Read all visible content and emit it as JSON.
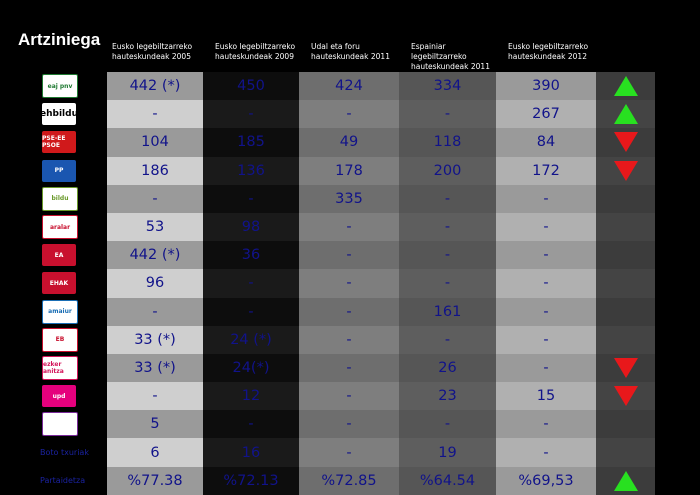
{
  "title": "Artziniega",
  "columns": [
    "Eusko legebiltzarreko hauteskundeak 2005",
    "Eusko legebiltzarreko hauteskundeak 2009",
    "Udal eta foru hauteskundeak 2011",
    "Espainiar legebiltzarreko hauteskundeak 2011",
    "Eusko legebiltzarreko hauteskundeak 2012"
  ],
  "rows": [
    {
      "logo": "eaj-pnv-logo",
      "logo_text": "eaj pnv",
      "color": "#1f7a32",
      "values": [
        "442 (*)",
        "450",
        "424",
        "334",
        "390"
      ],
      "trend": "up"
    },
    {
      "logo": "ehbildu-logo",
      "logo_text": "ehbildu",
      "color": "#000000",
      "values": [
        "-",
        "-",
        "-",
        "-",
        "267"
      ],
      "trend": "up"
    },
    {
      "logo": "pse-ee-logo",
      "logo_text": "PSE-EE PSOE",
      "color": "#d0191b",
      "values": [
        "104",
        "185",
        "49",
        "118",
        "84"
      ],
      "trend": "down"
    },
    {
      "logo": "pp-logo",
      "logo_text": "PP",
      "color": "#1a56b0",
      "values": [
        "186",
        "136",
        "178",
        "200",
        "172"
      ],
      "trend": "down"
    },
    {
      "logo": "bildu-logo",
      "logo_text": "bildu",
      "color": "#6a9a2a",
      "values": [
        "-",
        "-",
        "335",
        "-",
        "-"
      ],
      "trend": ""
    },
    {
      "logo": "aralar-logo",
      "logo_text": "aralar",
      "color": "#c8102e",
      "values": [
        "53",
        "98",
        "-",
        "-",
        "-"
      ],
      "trend": ""
    },
    {
      "logo": "ea-logo",
      "logo_text": "EA",
      "color": "#c8102e",
      "values": [
        "442 (*)",
        "36",
        "-",
        "-",
        "-"
      ],
      "trend": ""
    },
    {
      "logo": "ehak-logo",
      "logo_text": "EHAK",
      "color": "#c8102e",
      "values": [
        "96",
        "-",
        "-",
        "-",
        "-"
      ],
      "trend": ""
    },
    {
      "logo": "amaiur-logo",
      "logo_text": "amaiur",
      "color": "#1a6eb5",
      "values": [
        "-",
        "-",
        "-",
        "161",
        "-"
      ],
      "trend": ""
    },
    {
      "logo": "ezker-batua-logo",
      "logo_text": "EB",
      "color": "#c8102e",
      "values": [
        "33 (*)",
        "24 (*)",
        "-",
        "-",
        "-"
      ],
      "trend": ""
    },
    {
      "logo": "ezker-anitza-logo",
      "logo_text": "ezker anitza",
      "color": "#d4145a",
      "values": [
        "33 (*)",
        "24(*)",
        "-",
        "26",
        "-"
      ],
      "trend": "down"
    },
    {
      "logo": "upyd-logo",
      "logo_text": "upd",
      "color": "#e5007d",
      "values": [
        "-",
        "12",
        "-",
        "23",
        "15"
      ],
      "trend": "down"
    },
    {
      "logo": "other-party-logo",
      "logo_text": "",
      "color": "#7a2a9a",
      "values": [
        "5",
        "-",
        "-",
        "-",
        "-"
      ],
      "trend": ""
    },
    {
      "label": "Boto txuriak",
      "values": [
        "6",
        "16",
        "-",
        "19",
        "-"
      ],
      "trend": ""
    },
    {
      "label": "Partaidetza",
      "values": [
        "%77.38",
        "%72.13",
        "%72.85",
        "%64.54",
        "%69,53"
      ],
      "trend": "up"
    }
  ]
}
